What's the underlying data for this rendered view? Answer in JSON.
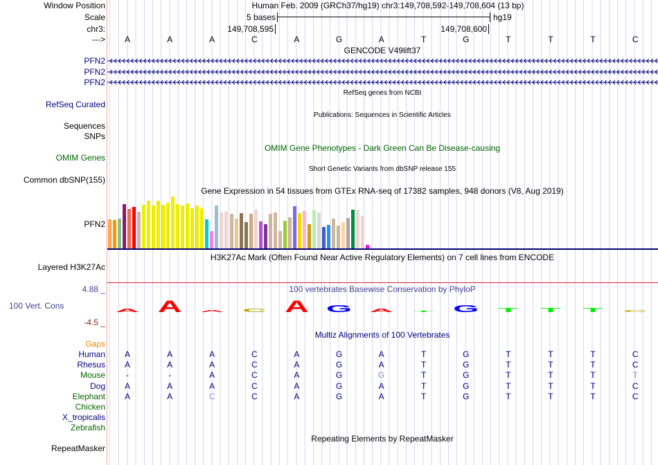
{
  "header": {
    "window_position_label": "Window Position",
    "window_position": "Human Feb. 2009 (GRCh37/hg19)   chr3:149,708,592-149,708,604 (13 bp)",
    "scale_label": "Scale",
    "scale_text": "5 bases",
    "assembly": "hg19",
    "chrom_label": "chr3:",
    "pos_left": "149,708,595",
    "pos_right": "149,708,600",
    "strand_label": "--->"
  },
  "bases": [
    "A",
    "A",
    "A",
    "C",
    "A",
    "G",
    "A",
    "T",
    "G",
    "T",
    "T",
    "T",
    "C"
  ],
  "tracks": {
    "gencode_title": "GENCODE V49lift37",
    "gencode_genes": [
      "PFN2",
      "PFN2",
      "PFN2"
    ],
    "refseq_title": "RefSeq genes from NCBI",
    "refseq_label": "RefSeq Curated",
    "pubs_title": "Publications: Sequences in Scientific Articles",
    "pubs_label": "Sequences",
    "snps_label": "SNPs",
    "omim_title": "OMIM Gene Phenotypes - Dark Green Can Be Disease-causing",
    "omim_label": "OMIM Genes",
    "dbsnp_title": "Short Genetic Variants from dbSNP release 155",
    "dbsnp_label": "Common dbSNP(155)",
    "gtex_title": "Gene Expression in 54 tissues from GTEx RNA-seq of 17382 samples, 948 donors (V8, Aug 2019)",
    "gtex_label": "PFN2",
    "h3k_title": "H3K27Ac Mark (Often Found Near Active Regulatory Elements) on 7 cell lines from ENCODE",
    "h3k_label": "Layered H3K27Ac",
    "phylop_title": "100 vertebrates Basewise Conservation by PhyloP",
    "phylop_label": "100 Vert. Cons",
    "phylop_max": "4.88 _",
    "phylop_min": "-4.5 _",
    "multiz_title": "Multiz Alignments of 100 Vertebrates",
    "gaps_label": "Gaps",
    "repeat_title": "Repeating Elements by RepeatMasker",
    "repeat_label": "RepeatMasker"
  },
  "gtex": {
    "values": [
      127,
      124,
      130,
      193,
      172,
      181,
      160,
      190,
      208,
      187,
      208,
      190,
      199,
      226,
      193,
      187,
      196,
      175,
      187,
      175,
      127,
      76,
      187,
      157,
      160,
      151,
      130,
      154,
      115,
      151,
      169,
      118,
      106,
      151,
      157,
      76,
      121,
      136,
      184,
      154,
      163,
      106,
      166,
      157,
      94,
      103,
      130,
      100,
      115,
      133,
      169,
      169,
      142,
      16
    ],
    "colors": [
      "#FFA54F",
      "#EE9A00",
      "#8FBC8F",
      "#8B1C62",
      "#EE6A50",
      "#FF0000",
      "#CDB79E",
      "#EEEE00",
      "#EEEE00",
      "#EEEE00",
      "#EEEE00",
      "#EEEE00",
      "#EEEE00",
      "#EEEE00",
      "#EEEE00",
      "#EEEE00",
      "#EEEE00",
      "#EEEE00",
      "#EEEE00",
      "#EEEE00",
      "#00CED1",
      "#EE82EE",
      "#9AC0CD",
      "#EED5D2",
      "#EED5D2",
      "#CDB79E",
      "#EEC591",
      "#8B7355",
      "#8B7355",
      "#CDAA7D",
      "#EED5D2",
      "#B452CD",
      "#7A378B",
      "#CDB79E",
      "#CDB79E",
      "#CDB79E",
      "#9ACD32",
      "#CDB79E",
      "#7B68EE",
      "#FFD700",
      "#FFB6C1",
      "#CD9B1D",
      "#B4EEB4",
      "#D9D9D9",
      "#3A5FCD",
      "#1E90FF",
      "#CDB79E",
      "#CDB79E",
      "#FFD39B",
      "#A6A6A6",
      "#008B45",
      "#EED5D2",
      "#EED5D2",
      "#FF00FF"
    ]
  },
  "phylop_scores": [
    1.0,
    3.4,
    0.6,
    1.0,
    3.4,
    2.0,
    1.0,
    0.4,
    2.0,
    1.2,
    1.2,
    1.2,
    0.6
  ],
  "base_colors": {
    "A": "#ff0000",
    "C": "#b8a800",
    "G": "#0000ff",
    "T": "#00ee00"
  },
  "multiz": [
    {
      "name": "Human",
      "color": "#000080",
      "seq": "AAACAGATGTTTC",
      "dim": []
    },
    {
      "name": "Rhesus",
      "color": "#000080",
      "seq": "AAACAGATGTTTC",
      "dim": []
    },
    {
      "name": "Mouse",
      "color": "#006400",
      "seq": "--ACAGGTGTTTT",
      "dim": [
        6,
        12
      ]
    },
    {
      "name": "Dog",
      "color": "#000080",
      "seq": "AAACAGATGTTTC",
      "dim": []
    },
    {
      "name": "Elephant",
      "color": "#006400",
      "seq": "AACCAGATGTTTC",
      "dim": [
        2
      ]
    },
    {
      "name": "Chicken",
      "color": "#006400",
      "seq": "",
      "dim": []
    },
    {
      "name": "X_tropicalis",
      "color": "#000080",
      "seq": "",
      "dim": []
    },
    {
      "name": "Zebrafish",
      "color": "#006400",
      "seq": "",
      "dim": []
    }
  ]
}
